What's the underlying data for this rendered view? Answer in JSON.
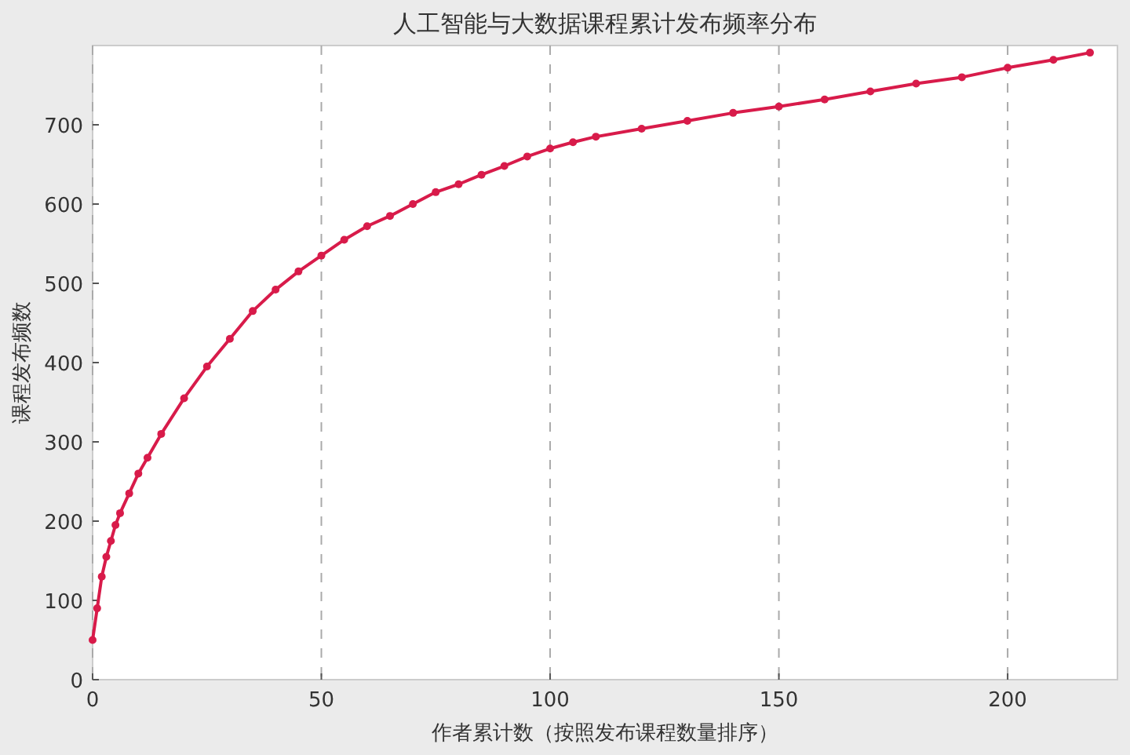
{
  "chart_data": {
    "type": "line",
    "title": "人工智能与大数据课程累计发布频率分布",
    "xlabel": "作者累计数（按照发布课程数量排序）",
    "ylabel": "课程发布频数",
    "x": [
      0,
      1,
      2,
      3,
      4,
      5,
      6,
      8,
      10,
      12,
      15,
      20,
      25,
      30,
      35,
      40,
      45,
      50,
      55,
      60,
      65,
      70,
      75,
      80,
      85,
      90,
      95,
      100,
      105,
      110,
      120,
      130,
      140,
      150,
      160,
      170,
      180,
      190,
      200,
      210,
      218
    ],
    "series": [
      {
        "color": "#d81b4a",
        "values": [
          50,
          90,
          130,
          155,
          175,
          195,
          210,
          235,
          260,
          280,
          310,
          355,
          395,
          430,
          465,
          492,
          515,
          535,
          555,
          572,
          585,
          600,
          615,
          625,
          637,
          648,
          660,
          670,
          678,
          685,
          695,
          705,
          715,
          723,
          732,
          742,
          752,
          760,
          772,
          782,
          791
        ]
      }
    ],
    "xlim": [
      0,
      224
    ],
    "ylim": [
      0,
      800
    ],
    "xticks": [
      0,
      50,
      100,
      150,
      200
    ],
    "yticks": [
      0,
      100,
      200,
      300,
      400,
      500,
      600,
      700
    ],
    "grid": "x",
    "marker": "circle",
    "line_style": "solid"
  }
}
